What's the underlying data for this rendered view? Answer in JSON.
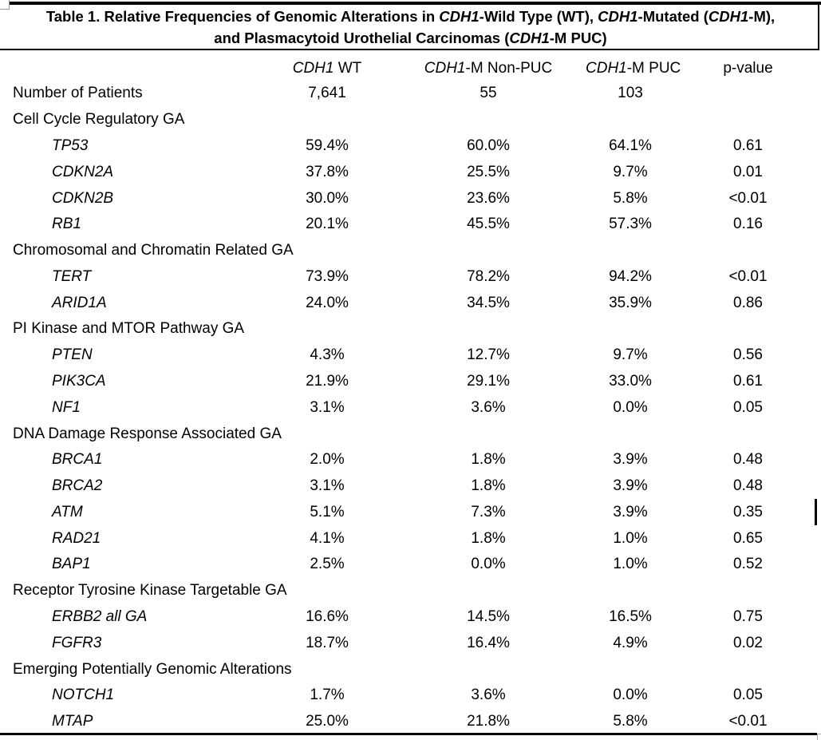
{
  "title": {
    "line1": [
      {
        "text": "Table 1. Relative Frequencies of Genomic Alterations in ",
        "italic": false
      },
      {
        "text": "CDH1",
        "italic": true
      },
      {
        "text": "-Wild Type (WT), ",
        "italic": false
      },
      {
        "text": "CDH1",
        "italic": true
      },
      {
        "text": "-Mutated (",
        "italic": false
      },
      {
        "text": "CDH1",
        "italic": true
      },
      {
        "text": "-M),",
        "italic": false
      }
    ],
    "line2": [
      {
        "text": "and Plasmacytoid Urothelial Carcinomas (",
        "italic": false
      },
      {
        "text": "CDH1",
        "italic": true
      },
      {
        "text": "-M PUC)",
        "italic": false
      }
    ]
  },
  "table": {
    "columns": [
      {
        "segments": [
          {
            "text": "CDH1",
            "italic": true
          },
          {
            "text": " WT",
            "italic": false
          }
        ]
      },
      {
        "segments": [
          {
            "text": "CDH1",
            "italic": true
          },
          {
            "text": "-M Non-PUC",
            "italic": false
          }
        ]
      },
      {
        "segments": [
          {
            "text": "CDH1",
            "italic": true
          },
          {
            "text": "-M PUC",
            "italic": false
          }
        ]
      },
      {
        "segments": [
          {
            "text": "p-value",
            "italic": false
          }
        ]
      }
    ],
    "rows": [
      {
        "kind": "patients",
        "label": "Number of Patients",
        "italic": false,
        "indent": false,
        "values": [
          "7,641",
          "55",
          "103",
          ""
        ]
      },
      {
        "kind": "section",
        "label": "Cell Cycle Regulatory GA",
        "italic": false,
        "indent": false,
        "values": [
          "",
          "",
          "",
          ""
        ]
      },
      {
        "kind": "gene",
        "label": "TP53",
        "italic": true,
        "indent": true,
        "values": [
          "59.4%",
          "60.0%",
          "64.1%",
          "0.61"
        ]
      },
      {
        "kind": "gene",
        "label": "CDKN2A",
        "italic": true,
        "indent": true,
        "values": [
          "37.8%",
          "25.5%",
          "9.7%",
          "0.01"
        ]
      },
      {
        "kind": "gene",
        "label": "CDKN2B",
        "italic": true,
        "indent": true,
        "values": [
          "30.0%",
          "23.6%",
          "5.8%",
          "<0.01"
        ]
      },
      {
        "kind": "gene",
        "label": "RB1",
        "italic": true,
        "indent": true,
        "values": [
          "20.1%",
          "45.5%",
          "57.3%",
          "0.16"
        ]
      },
      {
        "kind": "section",
        "label": "Chromosomal and Chromatin Related GA",
        "italic": false,
        "indent": false,
        "values": [
          "",
          "",
          "",
          ""
        ]
      },
      {
        "kind": "gene",
        "label": "TERT",
        "italic": true,
        "indent": true,
        "values": [
          "73.9%",
          "78.2%",
          "94.2%",
          "<0.01"
        ]
      },
      {
        "kind": "gene",
        "label": "ARID1A",
        "italic": true,
        "indent": true,
        "values": [
          "24.0%",
          "34.5%",
          "35.9%",
          "0.86"
        ]
      },
      {
        "kind": "section",
        "label": "PI Kinase and MTOR Pathway GA",
        "italic": false,
        "indent": false,
        "values": [
          "",
          "",
          "",
          ""
        ]
      },
      {
        "kind": "gene",
        "label": "PTEN",
        "italic": true,
        "indent": true,
        "values": [
          "4.3%",
          "12.7%",
          "9.7%",
          "0.56"
        ]
      },
      {
        "kind": "gene",
        "label": "PIK3CA",
        "italic": true,
        "indent": true,
        "values": [
          "21.9%",
          "29.1%",
          "33.0%",
          "0.61"
        ]
      },
      {
        "kind": "gene",
        "label": "NF1",
        "italic": true,
        "indent": true,
        "values": [
          "3.1%",
          "3.6%",
          "0.0%",
          "0.05"
        ]
      },
      {
        "kind": "section",
        "label": "DNA Damage Response Associated GA",
        "italic": false,
        "indent": false,
        "values": [
          "",
          "",
          "",
          ""
        ]
      },
      {
        "kind": "gene",
        "label": "BRCA1",
        "italic": true,
        "indent": true,
        "values": [
          "2.0%",
          "1.8%",
          "3.9%",
          "0.48"
        ]
      },
      {
        "kind": "gene",
        "label": "BRCA2",
        "italic": true,
        "indent": true,
        "values": [
          "3.1%",
          "1.8%",
          "3.9%",
          "0.48"
        ]
      },
      {
        "kind": "gene",
        "label": "ATM",
        "italic": true,
        "indent": true,
        "values": [
          "5.1%",
          "7.3%",
          "3.9%",
          "0.35"
        ]
      },
      {
        "kind": "gene",
        "label": "RAD21",
        "italic": true,
        "indent": true,
        "values": [
          "4.1%",
          "1.8%",
          "1.0%",
          "0.65"
        ]
      },
      {
        "kind": "gene",
        "label": "BAP1",
        "italic": true,
        "indent": true,
        "values": [
          "2.5%",
          "0.0%",
          "1.0%",
          "0.52"
        ]
      },
      {
        "kind": "section",
        "label": "Receptor Tyrosine Kinase Targetable GA",
        "italic": false,
        "indent": false,
        "values": [
          "",
          "",
          "",
          ""
        ]
      },
      {
        "kind": "gene",
        "label": "ERBB2 all GA",
        "italic": true,
        "indent": true,
        "values": [
          "16.6%",
          "14.5%",
          "16.5%",
          "0.75"
        ]
      },
      {
        "kind": "gene",
        "label": "FGFR3",
        "italic": true,
        "indent": true,
        "values": [
          "18.7%",
          "16.4%",
          "4.9%",
          "0.02"
        ]
      },
      {
        "kind": "section",
        "label": "Emerging Potentially Genomic Alterations",
        "italic": false,
        "indent": false,
        "values": [
          "",
          "",
          "",
          ""
        ]
      },
      {
        "kind": "gene",
        "label": "NOTCH1",
        "italic": true,
        "indent": true,
        "values": [
          "1.7%",
          "3.6%",
          "0.0%",
          "0.05"
        ]
      },
      {
        "kind": "gene",
        "label": "MTAP",
        "italic": true,
        "indent": true,
        "values": [
          "25.0%",
          "21.8%",
          "5.8%",
          "<0.01"
        ]
      }
    ]
  },
  "colors": {
    "text": "#000000",
    "rule": "#000000",
    "handle_border": "#9a9a9a",
    "corner_mark": "#a6a6a6",
    "background": "#ffffff"
  }
}
